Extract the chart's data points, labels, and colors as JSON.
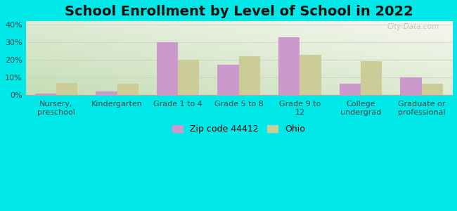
{
  "title": "School Enrollment by Level of School in 2022",
  "categories": [
    "Nursery,\npreschool",
    "Kindergarten",
    "Grade 1 to 4",
    "Grade 5 to 8",
    "Grade 9 to\n12",
    "College\nundergrad",
    "Graduate or\nprofessional"
  ],
  "zip_values": [
    1.0,
    2.0,
    30.0,
    17.5,
    33.0,
    6.5,
    10.0
  ],
  "ohio_values": [
    7.0,
    6.5,
    20.0,
    22.0,
    23.0,
    19.5,
    6.5
  ],
  "zip_color": "#cc99cc",
  "ohio_color": "#cccc99",
  "background_color": "#00e8e8",
  "ylabel": "",
  "ylim": [
    0,
    42
  ],
  "yticks": [
    0,
    10,
    20,
    30,
    40
  ],
  "ytick_labels": [
    "0%",
    "10%",
    "20%",
    "30%",
    "40%"
  ],
  "bar_width": 0.35,
  "legend_zip": "Zip code 44412",
  "legend_ohio": "Ohio",
  "title_fontsize": 14,
  "tick_fontsize": 8,
  "legend_fontsize": 9,
  "watermark": "City-Data.com"
}
